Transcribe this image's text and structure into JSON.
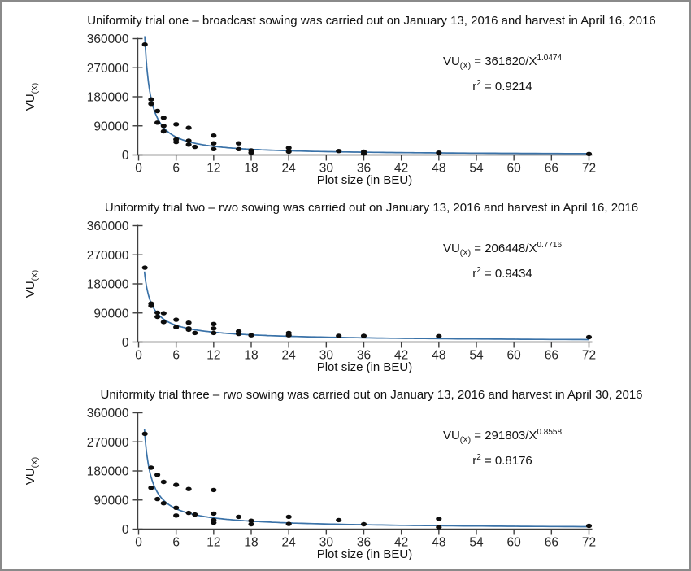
{
  "colors": {
    "background": "#ffffff",
    "frame_border": "#8a8a8a",
    "axis": "#3f3f3f",
    "tick_text": "#262626",
    "curve": "#3a72a8",
    "point": "#0d0d0d"
  },
  "chart_data": [
    {
      "type": "scatter",
      "title": "Uniformity trial one – broadcast sowing was carried out on January 13, 2016 and harvest in April 16, 2016",
      "xlabel": "Plot size (in BEU)",
      "ylabel": "VU",
      "ylabel_sub": "(X)",
      "xlim": [
        0,
        72
      ],
      "ylim": [
        0,
        360000
      ],
      "xticks": [
        0,
        6,
        12,
        18,
        24,
        30,
        36,
        42,
        48,
        54,
        60,
        66,
        72
      ],
      "yticks": [
        0,
        90000,
        180000,
        270000,
        360000
      ],
      "grid": false,
      "legend": "none",
      "fit": {
        "a": 361620,
        "b": 1.0474,
        "r2": 0.9214
      },
      "equation": {
        "var": "VU",
        "var_sub": "(X)",
        "rhs": " = 361620/X",
        "exponent": "1.0474",
        "r2_base": "r",
        "r2_sup": "2",
        "r2_rest": " = 0.9214"
      },
      "points": [
        [
          1,
          342000
        ],
        [
          2,
          172000
        ],
        [
          2,
          158000
        ],
        [
          3,
          136000
        ],
        [
          3,
          100000
        ],
        [
          4,
          115000
        ],
        [
          4,
          90000
        ],
        [
          4,
          73000
        ],
        [
          6,
          95000
        ],
        [
          6,
          48000
        ],
        [
          6,
          40000
        ],
        [
          8,
          84000
        ],
        [
          8,
          44000
        ],
        [
          8,
          32000
        ],
        [
          9,
          25000
        ],
        [
          12,
          60000
        ],
        [
          12,
          36000
        ],
        [
          12,
          18000
        ],
        [
          16,
          36000
        ],
        [
          16,
          18000
        ],
        [
          18,
          14000
        ],
        [
          18,
          7000
        ],
        [
          24,
          22000
        ],
        [
          24,
          10000
        ],
        [
          32,
          12000
        ],
        [
          36,
          10000
        ],
        [
          36,
          4000
        ],
        [
          48,
          7000
        ],
        [
          72,
          3000
        ]
      ]
    },
    {
      "type": "scatter",
      "title": "Uniformity trial two – rwo sowing was carried out on January 13, 2016 and harvest in April 16, 2016",
      "xlabel": "Plot size (in BEU)",
      "ylabel": "VU",
      "ylabel_sub": "(X)",
      "xlim": [
        0,
        72
      ],
      "ylim": [
        0,
        360000
      ],
      "xticks": [
        0,
        6,
        12,
        18,
        24,
        30,
        36,
        42,
        48,
        54,
        60,
        66,
        72
      ],
      "yticks": [
        0,
        90000,
        180000,
        270000,
        360000
      ],
      "grid": false,
      "legend": "none",
      "fit": {
        "a": 206448,
        "b": 0.7716,
        "r2": 0.9434
      },
      "equation": {
        "var": "VU",
        "var_sub": "(X)",
        "rhs": " = 206448/X",
        "exponent": "0.7716",
        "r2_base": "r",
        "r2_sup": "2",
        "r2_rest": " = 0.9434"
      },
      "points": [
        [
          1,
          230000
        ],
        [
          2,
          119000
        ],
        [
          2,
          112000
        ],
        [
          3,
          91000
        ],
        [
          3,
          78000
        ],
        [
          4,
          89000
        ],
        [
          4,
          62000
        ],
        [
          6,
          69000
        ],
        [
          6,
          46000
        ],
        [
          8,
          60000
        ],
        [
          8,
          42000
        ],
        [
          8,
          38000
        ],
        [
          9,
          28000
        ],
        [
          12,
          56000
        ],
        [
          12,
          42000
        ],
        [
          12,
          28000
        ],
        [
          16,
          33000
        ],
        [
          16,
          25000
        ],
        [
          18,
          21000
        ],
        [
          24,
          28000
        ],
        [
          24,
          21000
        ],
        [
          32,
          19000
        ],
        [
          36,
          19000
        ],
        [
          48,
          18000
        ],
        [
          72,
          15000
        ]
      ]
    },
    {
      "type": "scatter",
      "title": "Uniformity trial three – rwo sowing was carried out on January 13, 2016 and harvest in April 30, 2016",
      "xlabel": "Plot size (in BEU)",
      "ylabel": "VU",
      "ylabel_sub": "(X)",
      "xlim": [
        0,
        72
      ],
      "ylim": [
        0,
        360000
      ],
      "xticks": [
        0,
        6,
        12,
        18,
        24,
        30,
        36,
        42,
        48,
        54,
        60,
        66,
        72
      ],
      "yticks": [
        0,
        90000,
        180000,
        270000,
        360000
      ],
      "grid": false,
      "legend": "none",
      "fit": {
        "a": 291803,
        "b": 0.8558,
        "r2": 0.8176
      },
      "equation": {
        "var": "VU",
        "var_sub": "(X)",
        "rhs": " = 291803/X",
        "exponent": "0.8558",
        "r2_base": "r",
        "r2_sup": "2",
        "r2_rest": " = 0.8176"
      },
      "points": [
        [
          1,
          295000
        ],
        [
          2,
          190000
        ],
        [
          2,
          128000
        ],
        [
          3,
          168000
        ],
        [
          3,
          93000
        ],
        [
          4,
          146000
        ],
        [
          4,
          80000
        ],
        [
          6,
          137000
        ],
        [
          6,
          66000
        ],
        [
          6,
          42000
        ],
        [
          8,
          124000
        ],
        [
          8,
          50000
        ],
        [
          9,
          45000
        ],
        [
          12,
          121000
        ],
        [
          12,
          48000
        ],
        [
          12,
          28000
        ],
        [
          12,
          20000
        ],
        [
          16,
          38000
        ],
        [
          18,
          26000
        ],
        [
          18,
          15000
        ],
        [
          24,
          38000
        ],
        [
          24,
          16000
        ],
        [
          32,
          28000
        ],
        [
          36,
          15000
        ],
        [
          48,
          32000
        ],
        [
          48,
          6000
        ],
        [
          72,
          10000
        ]
      ]
    }
  ]
}
